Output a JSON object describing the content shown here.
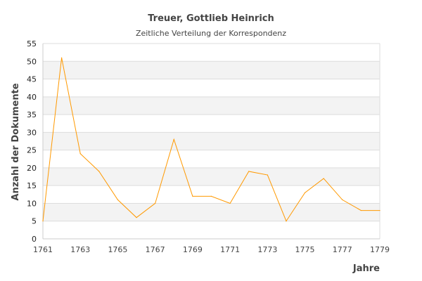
{
  "chart_data": {
    "type": "line",
    "title": "Treuer, Gottlieb Heinrich",
    "subtitle": "Zeitliche Verteilung der Korrespondenz",
    "xlabel": "Jahre",
    "ylabel": "Anzahl der Dokumente",
    "x": [
      1761,
      1762,
      1763,
      1764,
      1765,
      1766,
      1767,
      1768,
      1769,
      1770,
      1771,
      1772,
      1773,
      1774,
      1775,
      1776,
      1777,
      1778,
      1779
    ],
    "series": [
      {
        "values": [
          5,
          51,
          24,
          19,
          11,
          6,
          10,
          28,
          12,
          12,
          10,
          19,
          18,
          5,
          13,
          17,
          11,
          8,
          8
        ],
        "color": "#ff9900"
      }
    ],
    "xlim": [
      1761,
      1779
    ],
    "ylim": [
      0,
      55
    ],
    "xticks": [
      "1761",
      "1763",
      "1765",
      "1767",
      "1769",
      "1771",
      "1773",
      "1775",
      "1777",
      "1779"
    ],
    "yticks": [
      "0",
      "5",
      "10",
      "15",
      "20",
      "25",
      "30",
      "35",
      "40",
      "45",
      "50",
      "55"
    ],
    "grid": true,
    "band_color": "#f3f3f3",
    "legend": "none"
  }
}
